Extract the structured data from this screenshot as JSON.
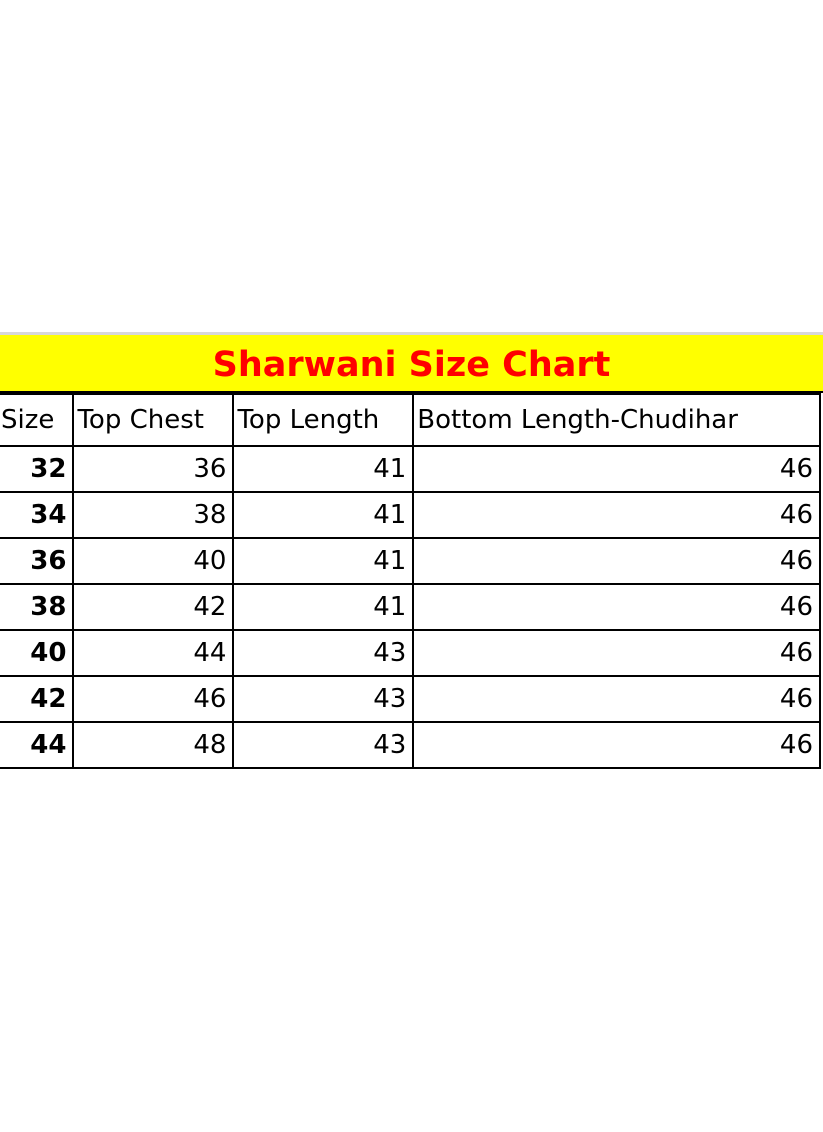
{
  "title": "Sharwani Size Chart",
  "colors": {
    "title_bg": "#ffff00",
    "title_text": "#ff0000"
  },
  "table": {
    "headers": [
      "Size",
      "Top Chest",
      "Top Length",
      "Bottom Length-Chudihar"
    ],
    "rows": [
      [
        "32",
        "36",
        "41",
        "46"
      ],
      [
        "34",
        "38",
        "41",
        "46"
      ],
      [
        "36",
        "40",
        "41",
        "46"
      ],
      [
        "38",
        "42",
        "41",
        "46"
      ],
      [
        "40",
        "44",
        "43",
        "46"
      ],
      [
        "42",
        "46",
        "43",
        "46"
      ],
      [
        "44",
        "48",
        "43",
        "46"
      ]
    ]
  }
}
